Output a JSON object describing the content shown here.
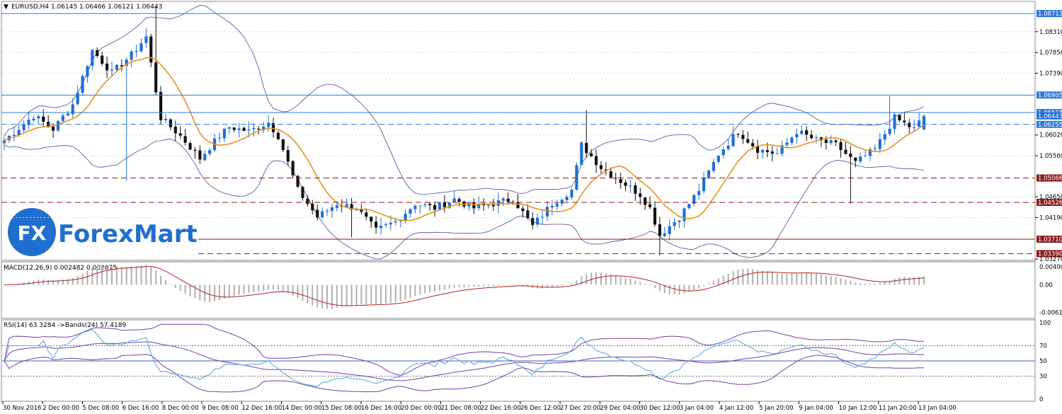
{
  "window": {
    "header": "EURUSD,H4  1.06145 1.06466 1.06121 1.06443"
  },
  "logo": {
    "fx": "FX",
    "text": "ForexMart"
  },
  "colors": {
    "bull": "#1e6fd9",
    "bear": "#111111",
    "ma": "#e8901c",
    "bands": "#4a4a9a",
    "support": "#8b1a1a",
    "resistance": "#2a78d8",
    "current": "#1e6fd9",
    "macd_hist": "#b0b0b0",
    "macd_signal": "#b22222",
    "rsi": "#4fa6d8",
    "rsi_bands": "#7a3fa8",
    "logo": "#1f6fd0"
  },
  "chart_data": {
    "type": "candlestick",
    "symbol": "EURUSD",
    "timeframe": "H4",
    "ohlc_header": {
      "open": 1.06145,
      "high": 1.06466,
      "low": 1.06121,
      "close": 1.06443
    },
    "price_axis": {
      "ylim": [
        1.0327,
        1.0895
      ],
      "ticks": [
        "1.08310",
        "1.07850",
        "1.07390",
        "1.06020",
        "1.05560",
        "1.04650",
        "1.04190",
        "1.03270"
      ]
    },
    "x_ticks": [
      "30 Nov 2016",
      "2 Dec 00:00",
      "5 Dec 08:00",
      "6 Dec 16:00",
      "8 Dec 00:00",
      "9 Dec 08:00",
      "12 Dec 16:00",
      "14 Dec 00:00",
      "15 Dec 08:00",
      "16 Dec 16:00",
      "20 Dec 00:00",
      "21 Dec 08:00",
      "22 Dec 16:00",
      "26 Dec 12:00",
      "27 Dec 20:00",
      "29 Dec 04:00",
      "30 Dec 12:00",
      "3 Jan 04:00",
      "4 Jan 12:00",
      "5 Jan 20:00",
      "9 Jan 04:00",
      "10 Jan 12:00",
      "11 Jan 20:00",
      "13 Jan 04:00"
    ],
    "levels": [
      {
        "price": 1.08713,
        "label": "1.08713",
        "kind": "resistance",
        "style": "solid"
      },
      {
        "price": 1.06905,
        "label": "1.06905",
        "kind": "resistance",
        "style": "solid"
      },
      {
        "price": 1.06518,
        "label": "1.06518",
        "kind": "resistance",
        "style": "solid"
      },
      {
        "price": 1.06443,
        "label": "1.06443",
        "kind": "current",
        "style": "solid"
      },
      {
        "price": 1.06255,
        "label": "1.06255",
        "kind": "resistance",
        "style": "dashed"
      },
      {
        "price": 1.05066,
        "label": "1.05066",
        "kind": "support",
        "style": "dashed"
      },
      {
        "price": 1.04526,
        "label": "1.04526",
        "kind": "support",
        "style": "dashed"
      },
      {
        "price": 1.0371,
        "label": "1.03710",
        "kind": "support",
        "style": "solid"
      },
      {
        "price": 1.0339,
        "label": "1.03390",
        "kind": "support",
        "style": "dashed"
      }
    ],
    "close_path": [
      [
        0,
        1.059
      ],
      [
        6,
        1.0645
      ],
      [
        10,
        1.0615
      ],
      [
        14,
        1.067
      ],
      [
        18,
        1.079
      ],
      [
        22,
        1.074
      ],
      [
        26,
        1.078
      ],
      [
        29,
        1.082
      ],
      [
        32,
        1.064
      ],
      [
        36,
        1.06
      ],
      [
        40,
        1.055
      ],
      [
        44,
        1.06
      ],
      [
        46,
        1.062
      ],
      [
        50,
        1.061
      ],
      [
        54,
        1.063
      ],
      [
        56,
        1.06
      ],
      [
        60,
        1.048
      ],
      [
        64,
        1.042
      ],
      [
        68,
        1.045
      ],
      [
        72,
        1.044
      ],
      [
        76,
        1.039
      ],
      [
        80,
        1.041
      ],
      [
        84,
        1.045
      ],
      [
        88,
        1.044
      ],
      [
        92,
        1.046
      ],
      [
        96,
        1.044
      ],
      [
        100,
        1.045
      ],
      [
        104,
        1.046
      ],
      [
        108,
        1.04
      ],
      [
        112,
        1.045
      ],
      [
        116,
        1.048
      ],
      [
        118,
        1.058
      ],
      [
        122,
        1.053
      ],
      [
        126,
        1.05
      ],
      [
        130,
        1.047
      ],
      [
        132,
        1.044
      ],
      [
        134,
        1.038
      ],
      [
        138,
        1.042
      ],
      [
        142,
        1.048
      ],
      [
        146,
        1.056
      ],
      [
        150,
        1.061
      ],
      [
        154,
        1.057
      ],
      [
        158,
        1.056
      ],
      [
        162,
        1.061
      ],
      [
        166,
        1.059
      ],
      [
        170,
        1.058
      ],
      [
        174,
        1.054
      ],
      [
        178,
        1.057
      ],
      [
        182,
        1.064
      ],
      [
        186,
        1.0615
      ],
      [
        188,
        1.0644
      ]
    ],
    "bands_period": 24,
    "ma_period": 10,
    "macd": {
      "label": "MACD(12,26,9) 0.002482 0.002075",
      "ticks": [
        "0.004006",
        "0.00",
        "-0.006139"
      ],
      "ylim": [
        -0.0072,
        0.0048
      ]
    },
    "rsi": {
      "label": "RSI(14) 63.3284  ->Bands(24) 57.4189",
      "ticks": [
        "100",
        "70",
        "50",
        "30",
        "0"
      ],
      "ylim": [
        0,
        100
      ],
      "levels": [
        70,
        50,
        30
      ]
    }
  }
}
